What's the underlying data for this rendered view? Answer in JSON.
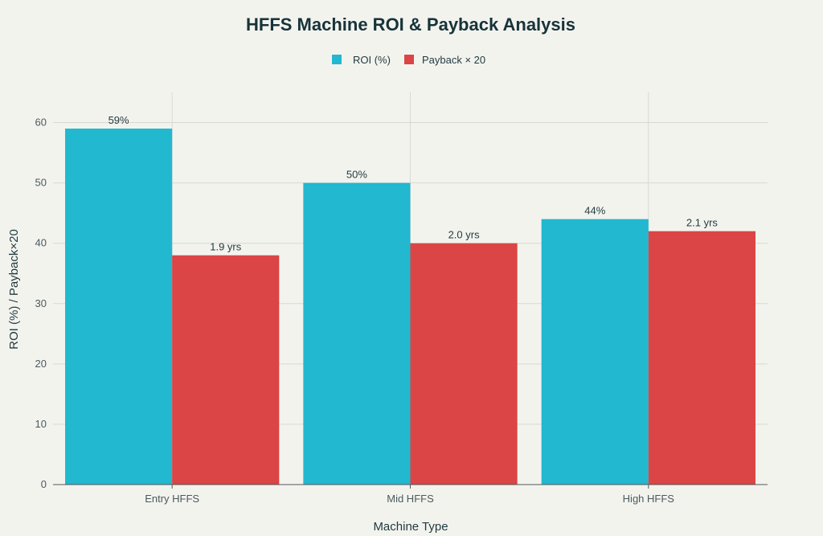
{
  "chart_data": {
    "type": "bar",
    "title": "HFFS Machine ROI & Payback Analysis",
    "xlabel": "Machine Type",
    "ylabel": "ROI (%) / Payback×20",
    "categories": [
      "Entry HFFS",
      "Mid HFFS",
      "High HFFS"
    ],
    "series": [
      {
        "name": "ROI (%)",
        "color": "#22b8cf",
        "values": [
          59,
          50,
          44
        ],
        "labels": [
          "59%",
          "50%",
          "44%"
        ]
      },
      {
        "name": "Payback × 20",
        "color": "#db4545",
        "values": [
          38,
          40,
          42
        ],
        "labels": [
          "1.9 yrs",
          "2.0 yrs",
          "2.1 yrs"
        ]
      }
    ],
    "ylim": [
      0,
      65
    ],
    "yticks": [
      0,
      10,
      20,
      30,
      40,
      50,
      60
    ],
    "grid": true,
    "legend_position": "top-center"
  }
}
